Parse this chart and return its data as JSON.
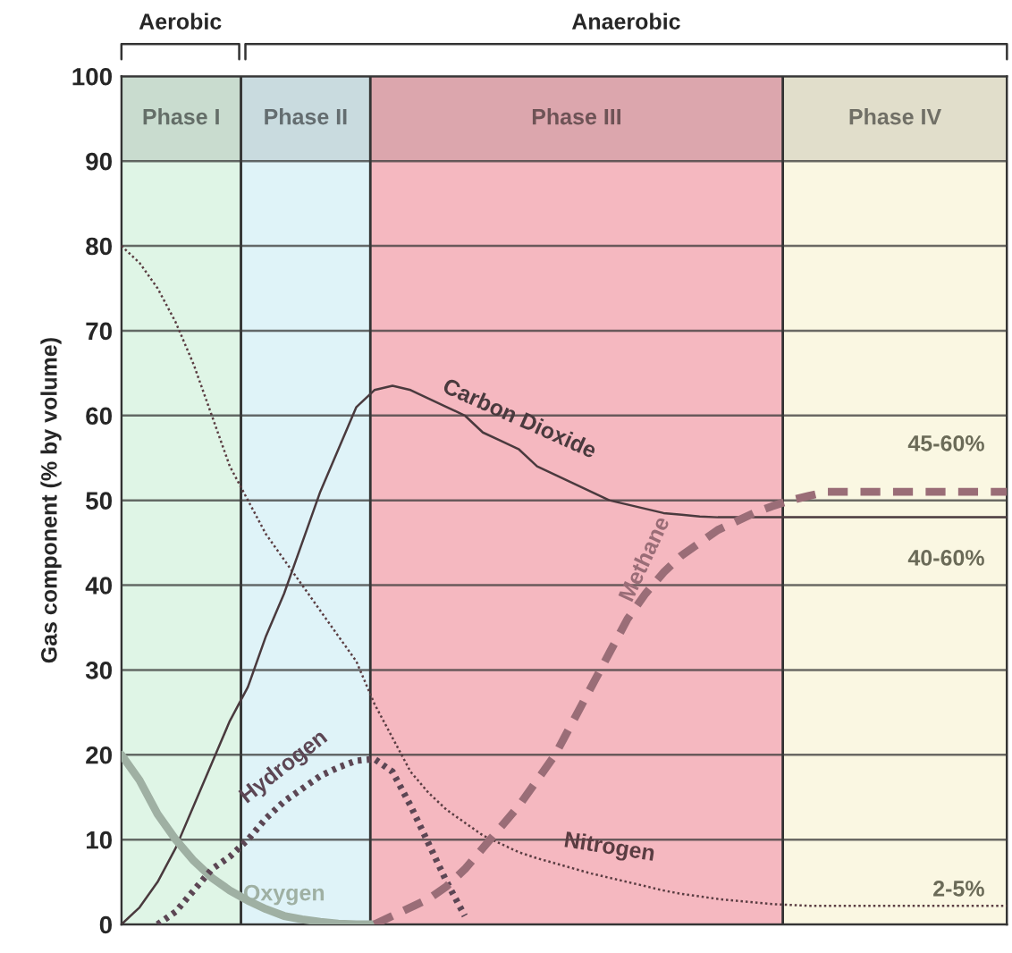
{
  "chart_data": {
    "type": "line",
    "ylabel": "Gas component (% by volume)",
    "categories": [
      null,
      null,
      null,
      null,
      null,
      null,
      null,
      null,
      null,
      null,
      null,
      null,
      null,
      null,
      null,
      null,
      null,
      null,
      null,
      null,
      null,
      null,
      null,
      null,
      null,
      null,
      null,
      null,
      null,
      null,
      null,
      null,
      null,
      null,
      null,
      null,
      null,
      null,
      null,
      null,
      null,
      null,
      null,
      null,
      null,
      null,
      null,
      null,
      null,
      null
    ],
    "ylim": [
      0,
      100
    ],
    "yticks": [
      0,
      10,
      20,
      30,
      40,
      50,
      60,
      70,
      80,
      90,
      100
    ],
    "grid": "y",
    "tick_labels": "y",
    "legend": false,
    "series": [
      {
        "name": "Nitrogen",
        "color": "#5a3d42",
        "line_style": "dotted",
        "values": [
          80,
          78,
          75,
          71,
          66,
          60,
          54,
          50,
          46,
          43,
          40,
          37,
          34,
          31,
          26,
          22,
          18,
          15.5,
          13.5,
          12,
          10.5,
          9.5,
          8.5,
          7.8,
          7.2,
          6.6,
          6,
          5.5,
          5,
          4.5,
          4,
          3.6,
          3.3,
          3,
          2.8,
          2.6,
          2.4,
          2.3,
          2.2,
          2.2,
          2.2,
          2.2,
          2.2,
          2.2,
          2.2,
          2.2,
          2.2,
          2.2,
          2.2,
          2.2
        ]
      },
      {
        "name": "Carbon Dioxide",
        "color": "#4a3a3e",
        "line_style": "solid",
        "values": [
          0,
          2,
          5,
          9,
          14,
          19,
          24,
          28,
          34,
          39,
          45,
          51,
          56,
          61,
          63,
          63.5,
          63,
          62,
          61,
          60,
          58,
          57,
          56,
          54,
          53,
          52,
          51,
          50,
          49.5,
          49,
          48.5,
          48.3,
          48.1,
          48,
          48,
          48,
          48,
          48,
          48,
          48,
          48,
          48,
          48,
          48,
          48,
          48,
          48,
          48,
          48,
          48
        ]
      },
      {
        "name": "Oxygen",
        "color": "#9fb0a3",
        "line_style": "solid",
        "values": [
          20,
          17,
          13,
          10,
          7.5,
          5.5,
          4,
          2.8,
          1.8,
          1,
          0.6,
          0.3,
          0.1,
          0,
          0,
          null,
          null,
          null,
          null,
          null,
          null,
          null,
          null,
          null,
          null,
          null,
          null,
          null,
          null,
          null,
          null,
          null,
          null,
          null,
          null,
          null,
          null,
          null,
          null,
          null,
          null,
          null,
          null,
          null,
          null,
          null,
          null,
          null,
          null,
          null
        ]
      },
      {
        "name": "Hydrogen",
        "color": "#5c4654",
        "line_style": "dotted",
        "values": [
          null,
          null,
          0,
          1.5,
          4,
          6.5,
          8,
          10,
          12.5,
          14.5,
          16,
          17.5,
          18.5,
          19.3,
          19.5,
          18,
          14,
          9.5,
          5,
          1,
          null,
          null,
          null,
          null,
          null,
          null,
          null,
          null,
          null,
          null,
          null,
          null,
          null,
          null,
          null,
          null,
          null,
          null,
          null,
          null,
          null,
          null,
          null,
          null,
          null,
          null,
          null,
          null,
          null,
          null
        ]
      },
      {
        "name": "Methane",
        "color": "#9a6d77",
        "line_style": "dashed",
        "values": [
          null,
          null,
          null,
          null,
          null,
          null,
          null,
          null,
          null,
          null,
          null,
          null,
          null,
          null,
          0,
          1,
          2,
          3,
          4.5,
          6.5,
          9,
          11.5,
          14,
          17,
          20,
          24,
          28,
          32,
          36,
          39,
          41.5,
          43.5,
          45,
          46.5,
          47.5,
          48.5,
          49.3,
          50,
          50.5,
          51,
          51,
          51,
          51,
          51,
          51,
          51,
          51,
          51,
          51,
          51
        ]
      }
    ],
    "annotations": [
      "Aerobic",
      "Anaerobic",
      "Phase I",
      "Phase II",
      "Phase III",
      "Phase IV",
      "45-60%",
      "40-60%",
      "2-5%"
    ]
  }
}
